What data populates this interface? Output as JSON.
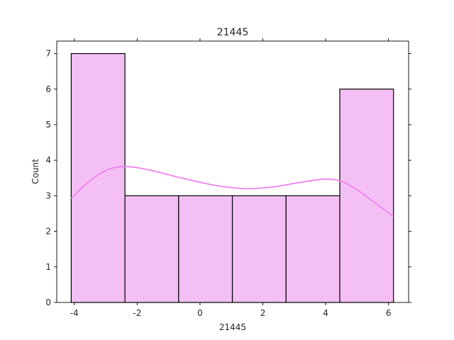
{
  "chart_data": {
    "type": "bar",
    "subtype": "histogram-with-kde",
    "title": "21445",
    "xlabel": "21445",
    "ylabel": "Count",
    "xlim": [
      -4.56,
      6.64
    ],
    "ylim": [
      0,
      7.35
    ],
    "xticks": [
      -4,
      -2,
      0,
      2,
      4,
      6
    ],
    "yticks": [
      0,
      1,
      2,
      3,
      4,
      5,
      6,
      7
    ],
    "bins": [
      {
        "x0": -4.1,
        "x1": -2.39,
        "count": 7
      },
      {
        "x0": -2.39,
        "x1": -0.68,
        "count": 3
      },
      {
        "x0": -0.68,
        "x1": 1.03,
        "count": 3
      },
      {
        "x0": 1.03,
        "x1": 2.74,
        "count": 3
      },
      {
        "x0": 2.74,
        "x1": 4.45,
        "count": 3
      },
      {
        "x0": 4.45,
        "x1": 6.16,
        "count": 6
      }
    ],
    "kde": {
      "x": [
        -4.1,
        -3.6,
        -3.0,
        -2.5,
        -2.0,
        -1.5,
        -1.0,
        -0.5,
        0.0,
        0.5,
        1.0,
        1.5,
        2.0,
        2.5,
        3.0,
        3.5,
        4.0,
        4.5,
        5.0,
        5.5,
        6.16
      ],
      "y": [
        2.92,
        3.35,
        3.71,
        3.82,
        3.79,
        3.7,
        3.59,
        3.48,
        3.38,
        3.29,
        3.23,
        3.2,
        3.22,
        3.27,
        3.35,
        3.42,
        3.47,
        3.41,
        3.17,
        2.85,
        2.42
      ]
    },
    "bar_fill": "#f4bff4",
    "bar_edge": "#000000",
    "kde_color": "#ee82ee",
    "grid": false
  }
}
